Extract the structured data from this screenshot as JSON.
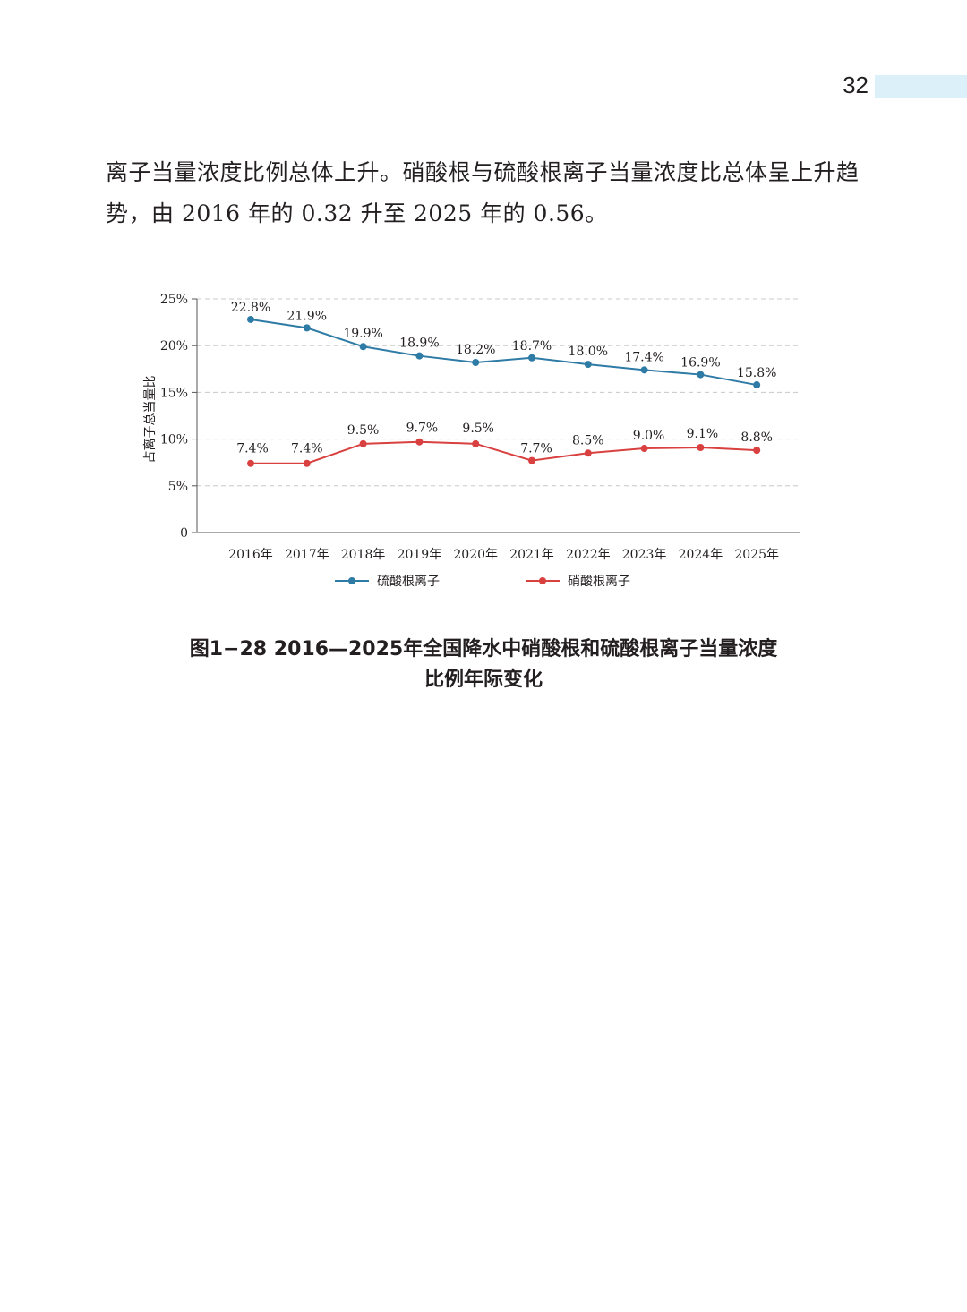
{
  "page": {
    "number": "32"
  },
  "paragraph": {
    "line1": "离子当量浓度比例总体上升。硝酸根与硫酸根离子当量浓度比总体呈上升趋",
    "line2": "势，由 2016 年的 0.32 升至 2025 年的 0.56。"
  },
  "figure": {
    "caption_line1": "图1−28  2016—2025年全国降水中硝酸根和硫酸根离子当量浓度",
    "caption_line2": "比例年际变化"
  },
  "chart_data": {
    "type": "line",
    "title": "",
    "xlabel": "",
    "ylabel": "占离子总当量比",
    "ylim": [
      0,
      25
    ],
    "y_ticks": [
      0,
      5,
      10,
      15,
      20,
      25
    ],
    "y_tick_labels": [
      "0",
      "5%",
      "10%",
      "15%",
      "20%",
      "25%"
    ],
    "grid": true,
    "legend_position": "bottom",
    "categories": [
      "2016年",
      "2017年",
      "2018年",
      "2019年",
      "2020年",
      "2021年",
      "2022年",
      "2023年",
      "2024年",
      "2025年"
    ],
    "series": [
      {
        "name": "硫酸根离子",
        "color": "#2e7ba6",
        "values": [
          22.8,
          21.9,
          19.9,
          18.9,
          18.2,
          18.7,
          18.0,
          17.4,
          16.9,
          15.8
        ],
        "labels": [
          "22.8%",
          "21.9%",
          "19.9%",
          "18.9%",
          "18.2%",
          "18.7%",
          "18.0%",
          "17.4%",
          "16.9%",
          "15.8%"
        ]
      },
      {
        "name": "硝酸根离子",
        "color": "#d94040",
        "values": [
          7.4,
          7.4,
          9.5,
          9.7,
          9.5,
          7.7,
          8.5,
          9.0,
          9.1,
          8.8
        ],
        "labels": [
          "7.4%",
          "7.4%",
          "9.5%",
          "9.7%",
          "9.5%",
          "7.7%",
          "8.5%",
          "9.0%",
          "9.1%",
          "8.8%"
        ]
      }
    ]
  }
}
